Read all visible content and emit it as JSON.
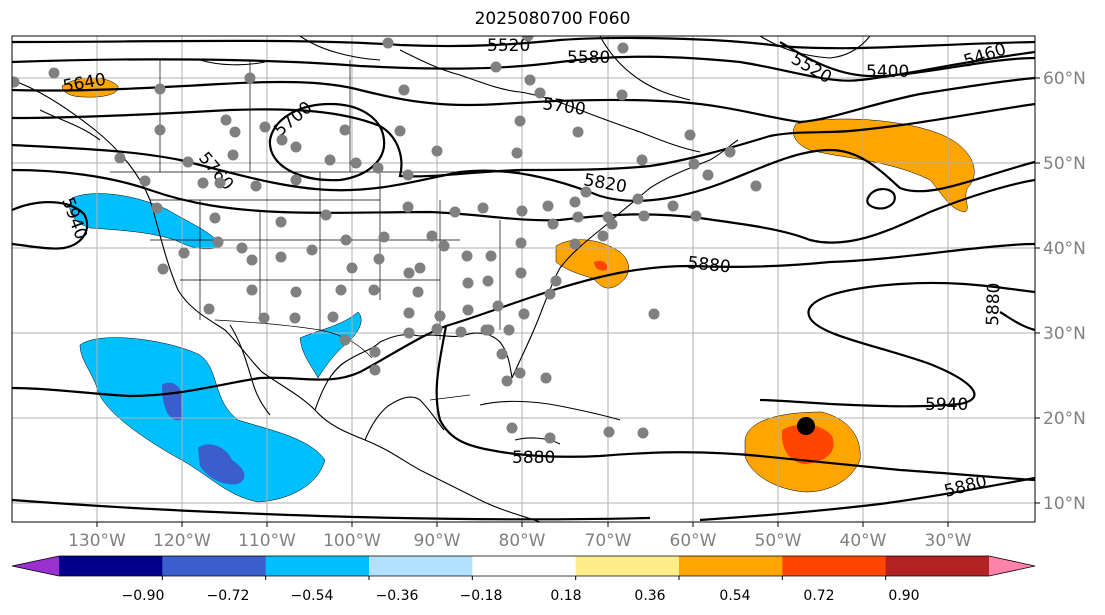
{
  "title": "2025080700 F060",
  "lon_labels": [
    "130°W",
    "120°W",
    "110°W",
    "100°W",
    "90°W",
    "80°W",
    "70°W",
    "60°W",
    "50°W",
    "40°W",
    "30°W"
  ],
  "lat_labels": [
    "60°N",
    "50°N",
    "40°N",
    "30°N",
    "20°N",
    "10°N"
  ],
  "contour_labels": [
    "5520",
    "5580",
    "5400",
    "5460",
    "5640",
    "5700",
    "5700",
    "5520",
    "5760",
    "5820",
    "5940",
    "5880",
    "5880",
    "5940",
    "5880",
    "5880"
  ],
  "colorbar": {
    "colors": [
      "#9b30d0",
      "#00008b",
      "#3a5fcd",
      "#00bfff",
      "#b0e2ff",
      "#ffffff",
      "#ffec8b",
      "#ffa500",
      "#ff4500",
      "#b22222",
      "#ff82ab"
    ],
    "tick_labels": [
      "−0.90",
      "−0.72",
      "−0.54",
      "−0.36",
      "−0.18",
      "0.18",
      "0.36",
      "0.54",
      "0.72",
      "0.90"
    ]
  },
  "colors": {
    "station_dot": "#808080",
    "marker": "#000000",
    "grid": "#b0b0b0"
  }
}
